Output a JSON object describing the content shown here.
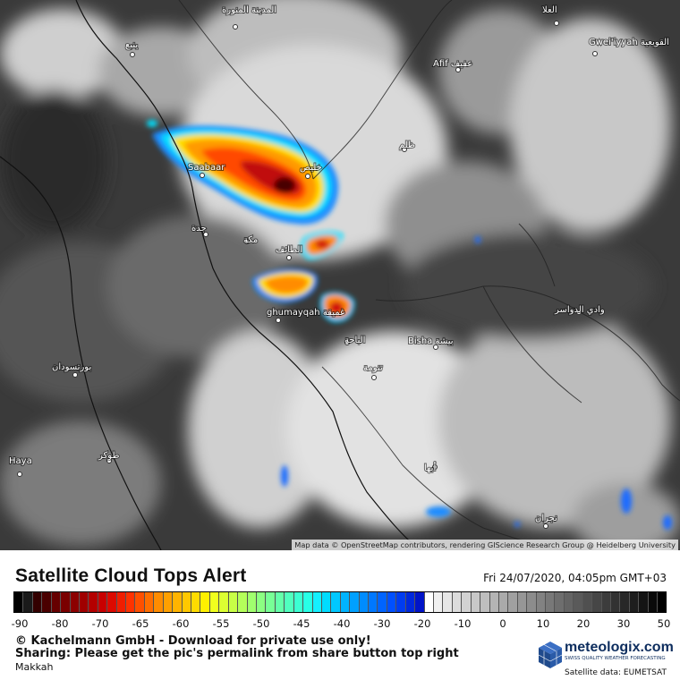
{
  "map": {
    "places": [
      {
        "id": "madinah",
        "name": "المدينة المنورة"
      },
      {
        "id": "alula",
        "name": "العلا"
      },
      {
        "id": "yanbu",
        "name": "ينبع"
      },
      {
        "id": "afif",
        "name": "Afif عفيف"
      },
      {
        "id": "quwayiyah",
        "name": "Gwei'iyyah القويعية"
      },
      {
        "id": "zalim",
        "name": "ظلم"
      },
      {
        "id": "saabaar",
        "name": "Saabaar"
      },
      {
        "id": "khulais",
        "name": "خليص"
      },
      {
        "id": "jeddah",
        "name": "جدة"
      },
      {
        "id": "makkah",
        "name": "مكة"
      },
      {
        "id": "taif",
        "name": "الطائف"
      },
      {
        "id": "ghumayqah",
        "name": "ghumayqah غميقة"
      },
      {
        "id": "baha",
        "name": "الباحة"
      },
      {
        "id": "bisha",
        "name": "Bisha بيشة"
      },
      {
        "id": "wadi",
        "name": "وادي الدواسر"
      },
      {
        "id": "port-sudan",
        "name": "بورتسودان"
      },
      {
        "id": "tanumah",
        "name": "تنومة"
      },
      {
        "id": "tokar",
        "name": "طوكر"
      },
      {
        "id": "haya",
        "name": "Haya"
      },
      {
        "id": "abha",
        "name": "أبها"
      },
      {
        "id": "najran",
        "name": "نجران"
      }
    ]
  },
  "attribution": "Map data © OpenStreetMap contributors, rendering GIScience Research Group @ Heidelberg University",
  "panel": {
    "title": "Satellite Cloud Tops Alert",
    "timestamp": "Fri 24/07/2020, 04:05pm GMT+03",
    "scale_ticks": [
      "-90",
      "-80",
      "-70",
      "-65",
      "-60",
      "-55",
      "-50",
      "-45",
      "-40",
      "-30",
      "-20",
      "-10",
      "0",
      "10",
      "20",
      "30",
      "50"
    ],
    "scale_colors": [
      "#000000",
      "#1a1a1a",
      "#330000",
      "#4a0000",
      "#660000",
      "#7a0000",
      "#8c0000",
      "#a00000",
      "#b40000",
      "#c80000",
      "#dc0a00",
      "#f01e00",
      "#ff3200",
      "#ff5000",
      "#ff6e00",
      "#ff8c00",
      "#ffa000",
      "#ffb400",
      "#ffc800",
      "#ffdc00",
      "#fff000",
      "#f0ff1e",
      "#dcff32",
      "#c8ff46",
      "#b4ff5a",
      "#a0ff6e",
      "#8cff82",
      "#78ff96",
      "#64ffaa",
      "#50ffbe",
      "#3cffd2",
      "#28ffe6",
      "#14f0ff",
      "#00dcff",
      "#00c8ff",
      "#00b4ff",
      "#00a0ff",
      "#008cff",
      "#0078ff",
      "#0064ff",
      "#0050ff",
      "#003cf0",
      "#0028dc",
      "#0014c8",
      "#ffffff",
      "#f0f0f0",
      "#e6e6e6",
      "#dcdcdc",
      "#d2d2d2",
      "#c8c8c8",
      "#bebebe",
      "#b4b4b4",
      "#aaaaaa",
      "#a0a0a0",
      "#969696",
      "#8c8c8c",
      "#828282",
      "#787878",
      "#6e6e6e",
      "#646464",
      "#5a5a5a",
      "#505050",
      "#464646",
      "#3c3c3c",
      "#323232",
      "#282828",
      "#1e1e1e",
      "#141414",
      "#0a0a0a",
      "#000000"
    ],
    "copyright": "© Kachelmann GmbH - Download for private use only!",
    "sharing": "Sharing: Please get the pic's permalink from share button top right",
    "location": "Makkah",
    "logo_name": "meteologix.com",
    "logo_tagline": "SWISS QUALITY WEATHER FORECASTING",
    "satellite_source": "Satellite data: EUMETSAT"
  }
}
